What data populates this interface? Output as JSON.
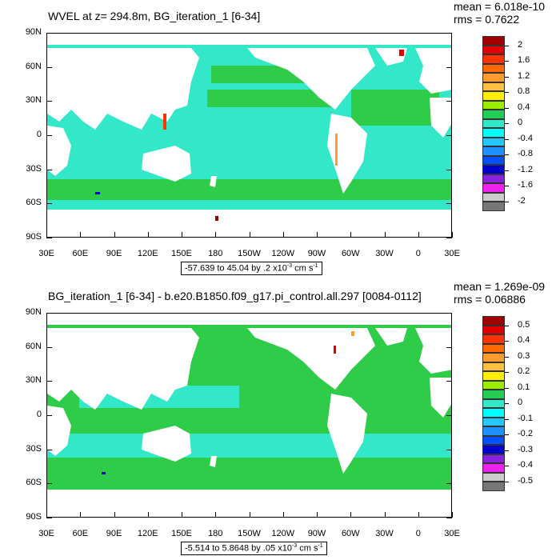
{
  "panels": [
    {
      "title": "WVEL at z= 294.8m, BG_iteration_1 [6-34]",
      "mean": "mean = 6.018e-10",
      "rms": "rms = 0.7622",
      "range_text": "-57.639 to 45.04 by .2 x10",
      "range_exp": "-3",
      "range_units": " cm s",
      "range_units_exp": "-1",
      "colorbar_labels": [
        "2",
        "1.6",
        "1.2",
        "0.8",
        "0.4",
        "0",
        "-0.4",
        "-0.8",
        "-1.2",
        "-1.6",
        "-2"
      ],
      "ocean_color": "#33e8c8",
      "band_color": "#2ecc48"
    },
    {
      "title": "BG_iteration_1 [6-34] - b.e20.B1850.f09_g17.pi_control.all.297 [0084-0112]",
      "mean": "mean = 1.269e-09",
      "rms": "rms = 0.06886",
      "range_text": "-5.514 to 5.8648 by .05 x10",
      "range_exp": "-3",
      "range_units": " cm s",
      "range_units_exp": "-1",
      "colorbar_labels": [
        "0.5",
        "0.4",
        "0.3",
        "0.2",
        "0.1",
        "0",
        "-0.1",
        "-0.2",
        "-0.3",
        "-0.4",
        "-0.5"
      ],
      "ocean_color": "#2ecc48",
      "band_color": "#33e8c8"
    }
  ],
  "lat_labels": [
    "90N",
    "60N",
    "30N",
    "0",
    "30S",
    "60S",
    "90S"
  ],
  "lon_labels": [
    "30E",
    "60E",
    "90E",
    "120E",
    "150E",
    "180",
    "150W",
    "120W",
    "90W",
    "60W",
    "30W",
    "0",
    "30E"
  ],
  "colorbar_colors": [
    "#a00000",
    "#e00000",
    "#ff3300",
    "#ff6a00",
    "#ff9a2e",
    "#ffc040",
    "#ffee00",
    "#99ee00",
    "#22cc55",
    "#33e8c8",
    "#00ffff",
    "#22c8ff",
    "#1e90ff",
    "#0050ff",
    "#0000cc",
    "#8822dd",
    "#ee22ee",
    "#cccccc",
    "#777777"
  ]
}
